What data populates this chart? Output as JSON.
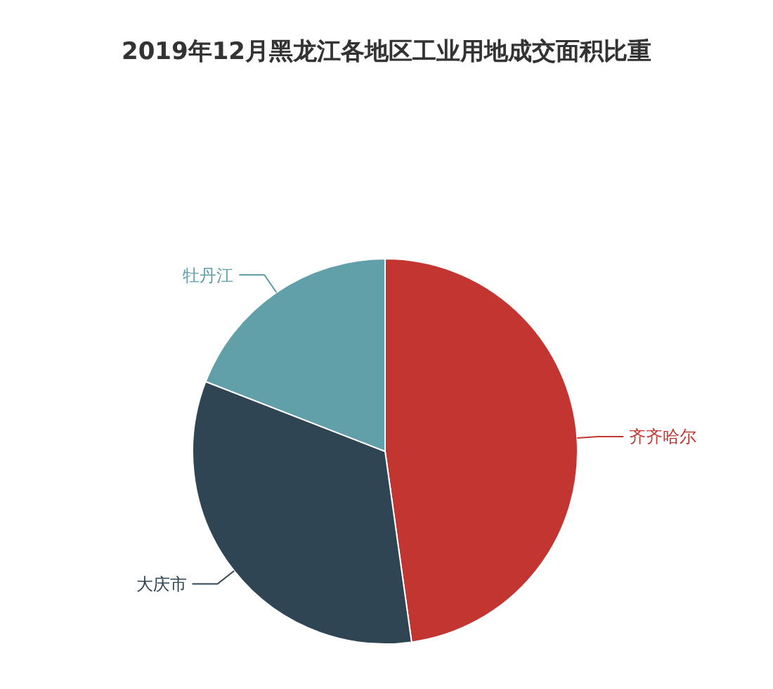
{
  "chart_data": {
    "type": "pie",
    "title": "2019年12月黑龙江各地区工业用地成交面积比重",
    "categories": [
      "齐齐哈尔",
      "大庆市",
      "牡丹江"
    ],
    "values": [
      47.8,
      33.1,
      19.1
    ],
    "colors": [
      "#c23531",
      "#2f4554",
      "#61a0a8"
    ]
  }
}
